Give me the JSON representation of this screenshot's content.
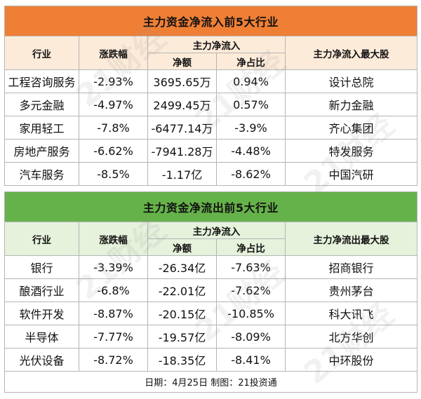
{
  "inflow": {
    "title": "主力资金净流入前5大行业",
    "headers": {
      "industry": "行业",
      "change": "涨跌幅",
      "main_net": "主力净流入",
      "net_amount": "净额",
      "net_ratio": "净占比",
      "top_stock": "主力净流入最大股"
    },
    "rows": [
      {
        "industry": "工程咨询服务",
        "change": "-2.93%",
        "amount": "3695.65万",
        "ratio": "0.94%",
        "stock": "设计总院"
      },
      {
        "industry": "多元金融",
        "change": "-4.97%",
        "amount": "2499.45万",
        "ratio": "0.57%",
        "stock": "新力金融"
      },
      {
        "industry": "家用轻工",
        "change": "-7.8%",
        "amount": "-6477.14万",
        "ratio": "-3.9%",
        "stock": "齐心集团"
      },
      {
        "industry": "房地产服务",
        "change": "-6.62%",
        "amount": "-7941.28万",
        "ratio": "-4.48%",
        "stock": "特发服务"
      },
      {
        "industry": "汽车服务",
        "change": "-8.5%",
        "amount": "-1.17亿",
        "ratio": "-8.62%",
        "stock": "中国汽研"
      }
    ]
  },
  "outflow": {
    "title": "主力资金净流出前5大行业",
    "headers": {
      "industry": "行业",
      "change": "涨跌幅",
      "main_net": "主力净流入",
      "net_amount": "净额",
      "net_ratio": "净占比",
      "top_stock": "主力净流出最大股"
    },
    "rows": [
      {
        "industry": "银行",
        "change": "-3.39%",
        "amount": "-26.34亿",
        "ratio": "-7.63%",
        "stock": "招商银行"
      },
      {
        "industry": "酿酒行业",
        "change": "-6.8%",
        "amount": "-22.01亿",
        "ratio": "-7.62%",
        "stock": "贵州茅台"
      },
      {
        "industry": "软件开发",
        "change": "-8.87%",
        "amount": "-20.15亿",
        "ratio": "-10.85%",
        "stock": "科大讯飞"
      },
      {
        "industry": "半导体",
        "change": "-7.77%",
        "amount": "-19.57亿",
        "ratio": "-8.09%",
        "stock": "北方华创"
      },
      {
        "industry": "光伏设备",
        "change": "-8.72%",
        "amount": "-18.35亿",
        "ratio": "-8.41%",
        "stock": "中环股份"
      }
    ]
  },
  "footer": "日期：4月25日 制图：21投资通",
  "watermark": "21财经",
  "colors": {
    "inflow_title_bg": "#ef7f35",
    "inflow_header_bg": "#fdebd9",
    "outflow_title_bg": "#66b24a",
    "outflow_header_bg": "#e6f2dc",
    "title_text": "#ffffff"
  }
}
